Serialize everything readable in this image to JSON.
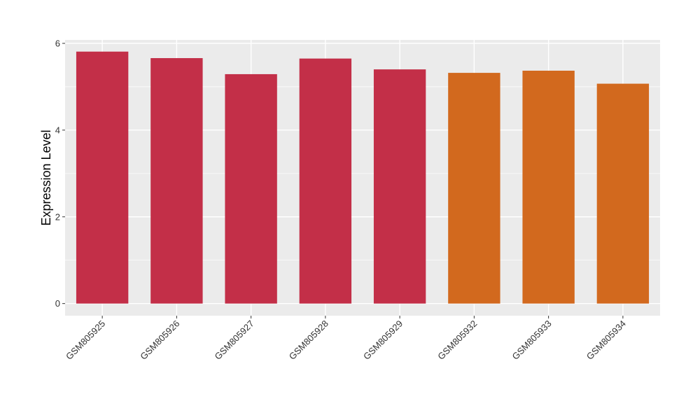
{
  "chart_data": {
    "type": "bar",
    "ylabel": "Expression Level",
    "xlabel": "",
    "categories": [
      "GSM805925",
      "GSM805926",
      "GSM805927",
      "GSM805928",
      "GSM805929",
      "GSM805932",
      "GSM805933",
      "GSM805934"
    ],
    "values": [
      5.81,
      5.66,
      5.29,
      5.65,
      5.4,
      5.32,
      5.37,
      5.07
    ],
    "bar_colors": [
      "#c32f48",
      "#c32f48",
      "#c32f48",
      "#c32f48",
      "#c32f48",
      "#d2691e",
      "#d2691e",
      "#d2691e"
    ],
    "ylim": [
      -0.28,
      6.08
    ],
    "yticks": [
      0,
      2,
      4,
      6
    ],
    "grid": true,
    "panel_background": "#ebebeb",
    "grid_color": "#ffffff"
  }
}
